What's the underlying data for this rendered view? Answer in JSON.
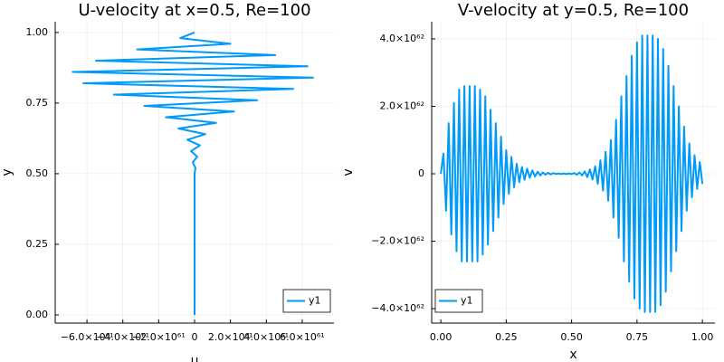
{
  "chart_data": [
    {
      "type": "line",
      "title": "U-velocity at x=0.5, Re=100",
      "x_label": "u",
      "y_label": "y",
      "x": [
        0,
        0,
        0,
        0,
        0,
        0,
        0,
        0,
        0,
        0,
        0,
        0,
        0,
        0,
        0,
        0,
        0,
        0,
        0,
        0,
        0,
        0,
        0,
        0,
        0,
        0,
        5e+59,
        -1e+60,
        1.5e+60,
        -2e+60,
        3e+60,
        -4e+60,
        6e+60,
        -9e+60,
        1.2e+61,
        -1.6e+61,
        2.2e+61,
        -2.8e+61,
        3.5e+61,
        -4.5e+61,
        5.5e+61,
        -6.2e+61,
        6.6e+61,
        -6.8e+61,
        6.3e+61,
        -5.5e+61,
        4.5e+61,
        -3.2e+61,
        2e+61,
        -8e+60,
        0
      ],
      "series": [
        {
          "name": "y1",
          "color": "#009af9",
          "values": [
            0,
            0.02,
            0.04,
            0.06,
            0.08,
            0.1,
            0.12,
            0.14,
            0.16,
            0.18,
            0.2,
            0.22,
            0.24,
            0.26,
            0.28,
            0.3,
            0.32,
            0.34,
            0.36,
            0.38,
            0.4,
            0.42,
            0.44,
            0.46,
            0.48,
            0.5,
            0.52,
            0.54,
            0.56,
            0.58,
            0.6,
            0.62,
            0.64,
            0.66,
            0.68,
            0.7,
            0.72,
            0.74,
            0.76,
            0.78,
            0.8,
            0.82,
            0.84,
            0.86,
            0.88,
            0.9,
            0.92,
            0.94,
            0.96,
            0.98,
            1
          ]
        }
      ],
      "xlim": [
        -7.77e+61,
        7.77e+61
      ],
      "xticks": [
        {
          "value": -6e+61,
          "label": "−6.0×10⁶¹"
        },
        {
          "value": -4e+61,
          "label": "−4.0×10⁶¹"
        },
        {
          "value": -2e+61,
          "label": "−2.0×10⁶¹"
        },
        0,
        {
          "value": 2e+61,
          "label": "2.0×10⁶¹"
        },
        {
          "value": 4e+61,
          "label": "4.0×10⁶¹"
        },
        {
          "value": 6e+61,
          "label": "6.0×10⁶¹"
        }
      ],
      "ylim": [
        -0.029,
        1.038
      ],
      "yticks": [
        {
          "value": 0,
          "label": "0.00"
        },
        {
          "value": 0.25,
          "label": "0.25"
        },
        {
          "value": 0.5,
          "label": "0.50"
        },
        {
          "value": 0.75,
          "label": "0.75"
        },
        {
          "value": 1,
          "label": "1.00"
        }
      ],
      "grid": true,
      "legend": "bottom-right"
    },
    {
      "type": "line",
      "title": "V-velocity at y=0.5, Re=100",
      "x_label": "x",
      "y_label": "v",
      "x": [
        0,
        0.01,
        0.02,
        0.03,
        0.04,
        0.05,
        0.06,
        0.07,
        0.08,
        0.09,
        0.1,
        0.11,
        0.12,
        0.13,
        0.14,
        0.15,
        0.16,
        0.17,
        0.18,
        0.19,
        0.2,
        0.21,
        0.22,
        0.23,
        0.24,
        0.25,
        0.26,
        0.27,
        0.28,
        0.29,
        0.3,
        0.31,
        0.32,
        0.33,
        0.34,
        0.35,
        0.36,
        0.37,
        0.38,
        0.39,
        0.4,
        0.41,
        0.42,
        0.43,
        0.44,
        0.45,
        0.46,
        0.47,
        0.48,
        0.49,
        0.5,
        0.51,
        0.52,
        0.53,
        0.54,
        0.55,
        0.56,
        0.57,
        0.58,
        0.59,
        0.6,
        0.61,
        0.62,
        0.63,
        0.64,
        0.65,
        0.66,
        0.67,
        0.68,
        0.69,
        0.7,
        0.71,
        0.72,
        0.73,
        0.74,
        0.75,
        0.76,
        0.77,
        0.78,
        0.79,
        0.8,
        0.81,
        0.82,
        0.83,
        0.84,
        0.85,
        0.86,
        0.87,
        0.88,
        0.89,
        0.9,
        0.91,
        0.92,
        0.93,
        0.94,
        0.95,
        0.96,
        0.97,
        0.98,
        0.99,
        1
      ],
      "series": [
        {
          "name": "y1",
          "color": "#009af9",
          "values": [
            0,
            6e+61,
            -1.1e+62,
            1.5e+62,
            -1.8e+62,
            2.1e+62,
            -2.3e+62,
            2.5e+62,
            -2.6e+62,
            2.6e+62,
            -2.6e+62,
            2.6e+62,
            -2.6e+62,
            2.6e+62,
            -2.6e+62,
            2.5e+62,
            -2.4e+62,
            2.3e+62,
            -2.1e+62,
            1.9e+62,
            -1.7e+62,
            1.5e+62,
            -1.3e+62,
            1.1e+62,
            -9e+61,
            7e+61,
            -6e+61,
            5e+61,
            -4e+61,
            3e+61,
            -2.5e+61,
            2e+61,
            -1.8e+61,
            1.5e+61,
            -1.2e+61,
            1e+61,
            -8e+60,
            6e+60,
            -5e+60,
            4e+60,
            -3e+60,
            3e+60,
            -2e+60,
            2e+60,
            -1e+60,
            1e+60,
            -1e+60,
            1e+60,
            -1e+60,
            1e+60,
            -1e+60,
            2e+60,
            -3e+60,
            4e+60,
            -5e+60,
            7e+60,
            -1e+61,
            1.3e+61,
            -1.7e+61,
            2.2e+61,
            -3e+61,
            4e+61,
            -5e+61,
            6.5e+61,
            -8e+61,
            1e+62,
            -1.3e+62,
            1.6e+62,
            -1.9e+62,
            2.3e+62,
            -2.6e+62,
            2.9e+62,
            -3.2e+62,
            3.5e+62,
            -3.7e+62,
            3.9e+62,
            -4e+62,
            4.1e+62,
            -4.1e+62,
            4.1e+62,
            -4.1e+62,
            4.1e+62,
            -4.1e+62,
            4e+62,
            -3.9e+62,
            3.7e+62,
            -3.5e+62,
            3.2e+62,
            -2.9e+62,
            2.6e+62,
            -2.3e+62,
            2e+62,
            -1.7e+62,
            1.4e+62,
            -1.1e+62,
            9e+61,
            -7e+61,
            5.5e+61,
            -4.5e+61,
            3.5e+61,
            -3e+61
          ]
        }
      ],
      "xlim": [
        -0.035,
        1.048
      ],
      "xticks": [
        {
          "value": 0,
          "label": "0.00"
        },
        {
          "value": 0.25,
          "label": "0.25"
        },
        {
          "value": 0.5,
          "label": "0.50"
        },
        {
          "value": 0.75,
          "label": "0.75"
        },
        {
          "value": 1,
          "label": "1.00"
        }
      ],
      "ylim": [
        -4.43e+62,
        4.51e+62
      ],
      "yticks": [
        {
          "value": -4e+62,
          "label": "−4.0×10⁶²"
        },
        {
          "value": -2e+62,
          "label": "−2.0×10⁶²"
        },
        0,
        {
          "value": 2e+62,
          "label": "2.0×10⁶²"
        },
        {
          "value": 4e+62,
          "label": "4.0×10⁶²"
        }
      ],
      "grid": true,
      "legend": "bottom-left"
    }
  ]
}
